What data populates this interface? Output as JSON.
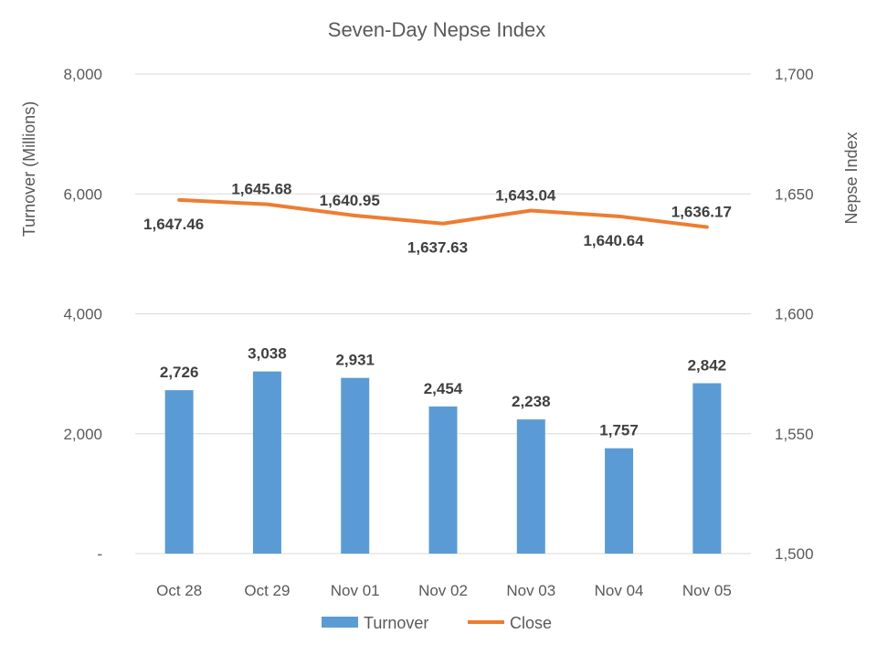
{
  "chart_data": {
    "type": "bar+line",
    "title": "Seven-Day Nepse Index",
    "categories": [
      "Oct 28",
      "Oct 29",
      "Nov 01",
      "Nov 02",
      "Nov 03",
      "Nov 04",
      "Nov 05"
    ],
    "series": [
      {
        "name": "Turnover",
        "type": "bar",
        "axis": "left",
        "color": "#5B9BD5",
        "values": [
          2726,
          3038,
          2931,
          2454,
          2238,
          1757,
          2842
        ],
        "labels": [
          "2,726",
          "3,038",
          "2,931",
          "2,454",
          "2,238",
          "1,757",
          "2,842"
        ]
      },
      {
        "name": "Close",
        "type": "line",
        "axis": "right",
        "color": "#ED7D31",
        "values": [
          1647.46,
          1645.68,
          1640.95,
          1637.63,
          1643.04,
          1640.64,
          1636.17
        ],
        "labels": [
          "1,647.46",
          "1,645.68",
          "1,640.95",
          "1,637.63",
          "1,643.04",
          "1,640.64",
          "1,636.17"
        ],
        "label_side": [
          "below",
          "above",
          "above",
          "below",
          "above",
          "below",
          "above"
        ]
      }
    ],
    "ylabel_left": "Turnover (Millions)",
    "ylabel_right": "Nepse Index",
    "ylim_left": [
      0,
      8000
    ],
    "ylim_right": [
      1500,
      1700
    ],
    "yticks_left": [
      "-",
      "2,000",
      "4,000",
      "6,000",
      "8,000"
    ],
    "yticks_right": [
      "1,500",
      "1,550",
      "1,600",
      "1,650",
      "1,700"
    ],
    "grid": true,
    "legend": "bottom"
  }
}
